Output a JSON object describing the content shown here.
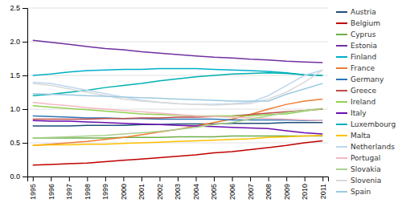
{
  "chart_data": {
    "type": "line",
    "x": [
      1995,
      1996,
      1997,
      1998,
      1999,
      2000,
      2001,
      2002,
      2003,
      2004,
      2005,
      2006,
      2007,
      2008,
      2009,
      2010,
      2011
    ],
    "series": [
      {
        "name": "Austria",
        "color": "#1f4e79",
        "values": [
          0.75,
          0.75,
          0.75,
          0.76,
          0.76,
          0.76,
          0.77,
          0.77,
          0.78,
          0.78,
          0.78,
          0.79,
          0.79,
          0.79,
          0.8,
          0.8,
          0.8
        ]
      },
      {
        "name": "Belgium",
        "color": "#c00000",
        "values": [
          0.17,
          0.18,
          0.19,
          0.2,
          0.22,
          0.24,
          0.26,
          0.28,
          0.3,
          0.32,
          0.35,
          0.37,
          0.4,
          0.43,
          0.46,
          0.5,
          0.53
        ]
      },
      {
        "name": "Cyprus",
        "color": "#70ad47",
        "values": [
          0.57,
          0.57,
          0.57,
          0.57,
          0.57,
          0.58,
          0.58,
          0.58,
          0.59,
          0.59,
          0.59,
          0.6,
          0.6,
          0.6,
          0.6,
          0.6,
          0.6
        ]
      },
      {
        "name": "Estonia",
        "color": "#7030a0",
        "values": [
          2.02,
          1.99,
          1.96,
          1.93,
          1.9,
          1.88,
          1.85,
          1.83,
          1.81,
          1.79,
          1.77,
          1.76,
          1.74,
          1.73,
          1.71,
          1.7,
          1.69
        ]
      },
      {
        "name": "Finland",
        "color": "#00b0c8",
        "values": [
          1.5,
          1.52,
          1.55,
          1.57,
          1.58,
          1.59,
          1.59,
          1.6,
          1.6,
          1.6,
          1.59,
          1.58,
          1.57,
          1.56,
          1.54,
          1.51,
          1.5
        ]
      },
      {
        "name": "France",
        "color": "#ed7d31",
        "values": [
          0.46,
          0.48,
          0.5,
          0.52,
          0.55,
          0.58,
          0.62,
          0.66,
          0.7,
          0.75,
          0.8,
          0.85,
          0.92,
          1.0,
          1.07,
          1.12,
          1.15
        ]
      },
      {
        "name": "Germany",
        "color": "#2e75b6",
        "values": [
          0.9,
          0.89,
          0.88,
          0.87,
          0.87,
          0.86,
          0.86,
          0.85,
          0.85,
          0.85,
          0.85,
          0.84,
          0.84,
          0.84,
          0.84,
          0.83,
          0.83
        ]
      },
      {
        "name": "Greece",
        "color": "#be4b48",
        "values": [
          0.85,
          0.85,
          0.85,
          0.85,
          0.86,
          0.86,
          0.87,
          0.87,
          0.88,
          0.88,
          0.89,
          0.9,
          0.92,
          0.94,
          0.96,
          0.98,
          1.0
        ]
      },
      {
        "name": "Ireland",
        "color": "#92d050",
        "values": [
          1.05,
          1.03,
          1.01,
          0.99,
          0.97,
          0.95,
          0.93,
          0.92,
          0.91,
          0.9,
          0.9,
          0.9,
          0.9,
          0.92,
          0.93,
          0.97,
          1.01
        ]
      },
      {
        "name": "Italy",
        "color": "#6a0dad",
        "values": [
          0.83,
          0.82,
          0.82,
          0.81,
          0.8,
          0.79,
          0.78,
          0.77,
          0.76,
          0.75,
          0.74,
          0.73,
          0.72,
          0.71,
          0.68,
          0.65,
          0.63
        ]
      },
      {
        "name": "Luxembourg",
        "color": "#00b0b0",
        "values": [
          1.2,
          1.22,
          1.25,
          1.28,
          1.32,
          1.35,
          1.38,
          1.42,
          1.45,
          1.48,
          1.5,
          1.52,
          1.53,
          1.54,
          1.53,
          1.51,
          1.5
        ]
      },
      {
        "name": "Malta",
        "color": "#ffc000",
        "values": [
          0.46,
          0.47,
          0.47,
          0.48,
          0.48,
          0.49,
          0.5,
          0.51,
          0.52,
          0.53,
          0.54,
          0.55,
          0.56,
          0.58,
          0.59,
          0.6,
          0.61
        ]
      },
      {
        "name": "Netherlands",
        "color": "#bdd7ee",
        "values": [
          1.4,
          1.38,
          1.33,
          1.28,
          1.23,
          1.18,
          1.13,
          1.1,
          1.08,
          1.07,
          1.07,
          1.08,
          1.1,
          1.2,
          1.35,
          1.5,
          1.58
        ]
      },
      {
        "name": "Portugal",
        "color": "#f4b8c1",
        "values": [
          1.1,
          1.07,
          1.05,
          1.02,
          1.0,
          0.98,
          0.96,
          0.94,
          0.92,
          0.9,
          0.89,
          0.88,
          0.87,
          0.86,
          0.85,
          0.84,
          0.83
        ]
      },
      {
        "name": "Slovakia",
        "color": "#a9d18e",
        "values": [
          0.57,
          0.58,
          0.59,
          0.6,
          0.61,
          0.63,
          0.65,
          0.67,
          0.7,
          0.73,
          0.77,
          0.8,
          0.85,
          0.9,
          0.95,
          0.98,
          1.01
        ]
      },
      {
        "name": "Slovenia",
        "color": "#d9d9d9",
        "values": [
          1.38,
          1.35,
          1.3,
          1.25,
          1.2,
          1.15,
          1.12,
          1.1,
          1.08,
          1.07,
          1.06,
          1.07,
          1.08,
          1.15,
          1.25,
          1.4,
          1.58
        ]
      },
      {
        "name": "Spain",
        "color": "#9ecae1",
        "values": [
          1.23,
          1.22,
          1.21,
          1.2,
          1.19,
          1.18,
          1.17,
          1.16,
          1.15,
          1.14,
          1.13,
          1.12,
          1.12,
          1.12,
          1.22,
          1.3,
          1.38
        ]
      }
    ],
    "xlim": [
      1994.7,
      2011.3
    ],
    "xticks": [
      1995,
      1996,
      1997,
      1998,
      1999,
      2000,
      2001,
      2002,
      2003,
      2004,
      2005,
      2006,
      2007,
      2008,
      2009,
      2010,
      2011
    ],
    "ylim": [
      0,
      2.5
    ],
    "yticks": [
      {
        "value": 0,
        "label": "0.0"
      },
      0.5,
      {
        "value": 1.0,
        "label": "1.0"
      },
      1.5,
      {
        "value": 2.0,
        "label": "2.0"
      },
      2.5
    ],
    "grid": true,
    "legend": "right"
  }
}
